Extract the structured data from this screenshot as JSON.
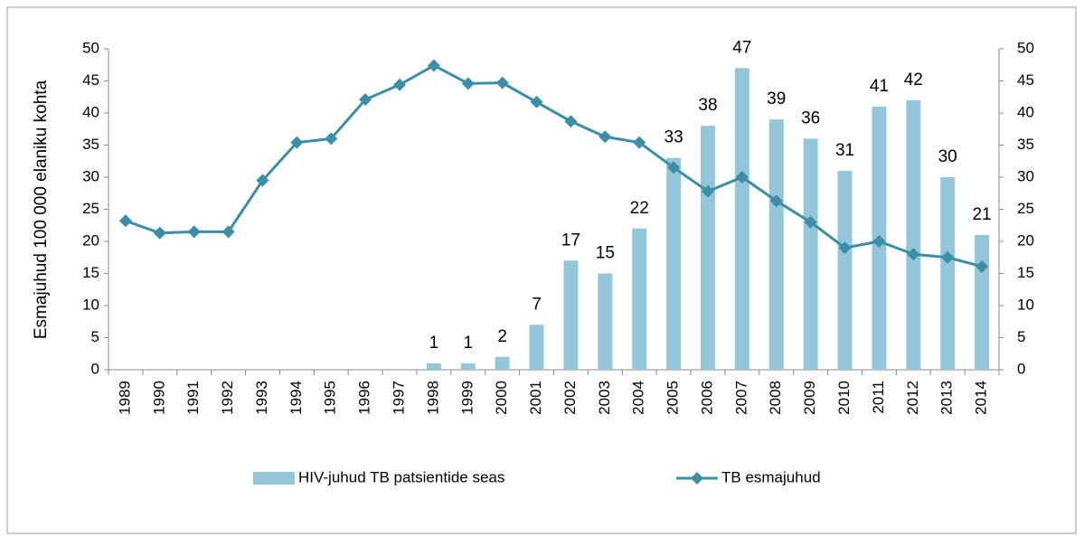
{
  "chart_data": {
    "type": "bar_line",
    "y_label": "Esmajuhud 100 000 elaniku kohta",
    "categories": [
      "1989",
      "1990",
      "1991",
      "1992",
      "1993",
      "1994",
      "1995",
      "1996",
      "1997",
      "1998",
      "1999",
      "2000",
      "2001",
      "2002",
      "2003",
      "2004",
      "2005",
      "2006",
      "2007",
      "2008",
      "2009",
      "2010",
      "2011",
      "2012",
      "2013",
      "2014"
    ],
    "series": [
      {
        "name": "HIV-juhud TB patsientide seas",
        "type": "bar",
        "axis": "y2",
        "color": "#93c6d8",
        "values": [
          null,
          null,
          null,
          null,
          null,
          null,
          null,
          null,
          null,
          1,
          1,
          2,
          7,
          17,
          15,
          22,
          33,
          38,
          47,
          39,
          36,
          31,
          41,
          42,
          30,
          21
        ]
      },
      {
        "name": "TB esmajuhud",
        "type": "line",
        "color": "#3a8ea8",
        "values": [
          23.2,
          21.3,
          21.5,
          21.5,
          29.5,
          35.4,
          36.0,
          42.1,
          44.4,
          47.4,
          44.6,
          44.7,
          41.7,
          38.7,
          36.3,
          35.4,
          31.5,
          27.8,
          30.0,
          26.3,
          23.0,
          19.0,
          20.0,
          18.0,
          17.5,
          16.1
        ]
      }
    ],
    "ylim": [
      0,
      50
    ],
    "yticks": [
      0,
      5,
      10,
      15,
      20,
      25,
      30,
      35,
      40,
      45,
      50
    ],
    "y2lim": [
      0,
      50
    ],
    "y2ticks": [
      0,
      5,
      10,
      15,
      20,
      25,
      30,
      35,
      40,
      45,
      50
    ],
    "legend": "bottom"
  }
}
